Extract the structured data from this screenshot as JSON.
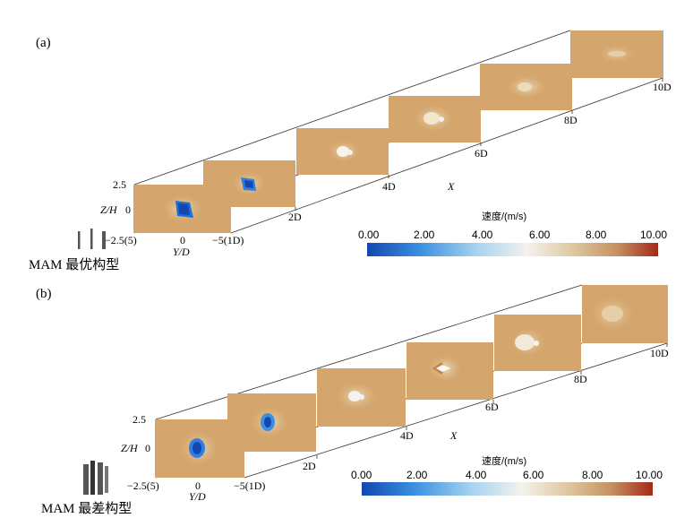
{
  "panels": [
    {
      "label": "(a)",
      "caption": "MAM 最优构型",
      "x_ticks": [
        "2D",
        "4D",
        "6D",
        "8D",
        "10D"
      ],
      "x_axis_label": "X",
      "z_axis_label": "Z/H",
      "z_ticks": [
        "2.5",
        "0"
      ],
      "y_axis_label": "Y/D",
      "y_ticks": [
        "−2.5(5)",
        "0",
        "−5(1D)"
      ],
      "colorbar_title": "速度/(m/s)",
      "colorbar_ticks": [
        "0.00",
        "2.00",
        "4.00",
        "6.00",
        "8.00",
        "10.00"
      ]
    },
    {
      "label": "(b)",
      "caption": "MAM 最差构型",
      "x_ticks": [
        "2D",
        "4D",
        "6D",
        "8D",
        "10D"
      ],
      "x_axis_label": "X",
      "z_axis_label": "Z/H",
      "z_ticks": [
        "2.5",
        "0"
      ],
      "y_axis_label": "Y/D",
      "y_ticks": [
        "−2.5(5)",
        "0",
        "−5(1D)"
      ],
      "colorbar_title": "速度/(m/s)",
      "colorbar_ticks": [
        "0.00",
        "2.00",
        "4.00",
        "6.00",
        "8.00",
        "10.00"
      ]
    }
  ],
  "colors": {
    "field_background": "#d4a56c",
    "colormap": [
      "#1248b0",
      "#3a8fe0",
      "#a8d4f0",
      "#f4f2ee",
      "#dcc49a",
      "#c49060",
      "#a4281a"
    ]
  }
}
